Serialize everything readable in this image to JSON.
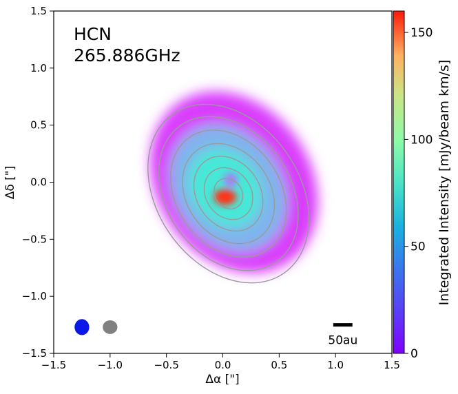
{
  "chart_data": {
    "type": "heatmap",
    "title": "",
    "annotation": {
      "line1": "HCN",
      "line2": "265.886GHz"
    },
    "xlabel": "Δα [\"]",
    "ylabel": "Δδ [\"]",
    "xlim": [
      -1.5,
      1.5
    ],
    "ylim": [
      -1.5,
      1.5
    ],
    "xticks": [
      -1.5,
      -1.0,
      -0.5,
      0.0,
      0.5,
      1.0,
      1.5
    ],
    "xtick_labels": [
      "−1.5",
      "−1.0",
      "−0.5",
      "0.0",
      "0.5",
      "1.0",
      "1.5"
    ],
    "yticks": [
      -1.5,
      -1.0,
      -0.5,
      0.0,
      0.5,
      1.0,
      1.5
    ],
    "ytick_labels": [
      "−1.5",
      "−1.0",
      "−0.5",
      "0.0",
      "0.5",
      "1.0",
      "1.5"
    ],
    "colorbar": {
      "label": "Integrated Intensity [mJy/beam km/s]",
      "range": [
        0,
        160
      ],
      "ticks": [
        0,
        50,
        100,
        150
      ],
      "tick_labels": [
        "0",
        "50",
        "100",
        "150"
      ],
      "colormap": "rainbow"
    },
    "emission": {
      "outer_disk": {
        "center": [
          0.1,
          0.0
        ],
        "radius": [
          0.68,
          0.85
        ],
        "rotation_deg": -35,
        "level": 12
      },
      "mid_disk": {
        "center": [
          0.05,
          -0.05
        ],
        "radius": [
          0.48,
          0.6
        ],
        "rotation_deg": -35,
        "level": 40
      },
      "inner_disk": {
        "center": [
          0.02,
          -0.05
        ],
        "radius": [
          0.3,
          0.36
        ],
        "rotation_deg": -35,
        "level": 58
      },
      "hot_spot": {
        "center": [
          0.02,
          -0.13
        ],
        "radius": [
          0.1,
          0.07
        ],
        "level": 150
      },
      "central_dip": {
        "center": [
          0.07,
          0.02
        ],
        "radius": [
          0.06,
          0.06
        ],
        "level": 25
      }
    },
    "contours": {
      "color": "#9a9a9a",
      "center": [
        0.05,
        -0.1
      ],
      "rotation_deg": -35,
      "radii": [
        [
          0.12,
          0.14
        ],
        [
          0.2,
          0.24
        ],
        [
          0.28,
          0.35
        ],
        [
          0.37,
          0.47
        ],
        [
          0.46,
          0.6
        ],
        [
          0.55,
          0.73
        ],
        [
          0.63,
          0.85
        ]
      ]
    },
    "beams": [
      {
        "name": "line beam",
        "center": [
          -1.25,
          -1.27
        ],
        "size": [
          0.13,
          0.14
        ],
        "color": "#0a18e8"
      },
      {
        "name": "continuum beam",
        "center": [
          -1.0,
          -1.27
        ],
        "size": [
          0.13,
          0.12
        ],
        "color": "#808080"
      }
    ],
    "scale_bar": {
      "label": "50au",
      "x_range": [
        0.98,
        1.15
      ],
      "y": -1.25
    }
  }
}
